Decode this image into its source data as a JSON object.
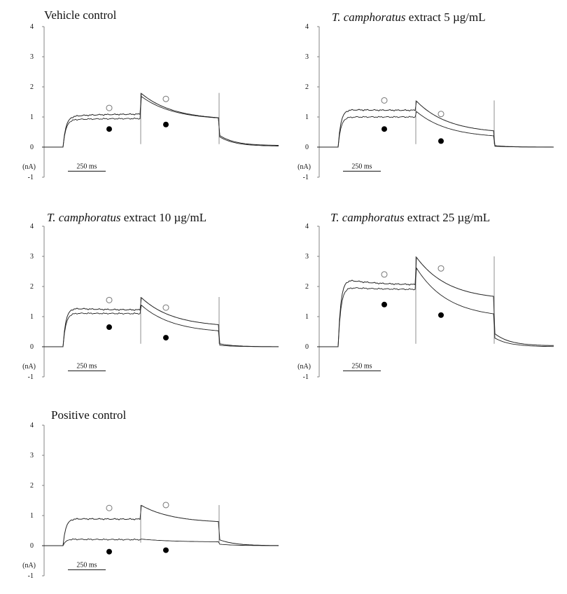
{
  "chart_data": [
    {
      "type": "line",
      "title": "Vehicle control",
      "y_unit": "(nA)",
      "ylim": [
        -1,
        4
      ],
      "yticks": [
        "4",
        "3",
        "2",
        "1",
        "0",
        "-1"
      ],
      "scale_bar": "250 ms",
      "series": [
        {
          "marker": "open-circle",
          "baseline": 0,
          "step1_peak": 1.0,
          "step1_plateau": 1.1,
          "step2_peak": 1.8,
          "step2_end": 0.9,
          "tail_start": 0.4,
          "tail_end": 0.05
        },
        {
          "marker": "filled-circle",
          "baseline": 0,
          "step1_peak": 0.9,
          "step1_plateau": 0.95,
          "step2_peak": 1.7,
          "step2_end": 0.9,
          "tail_start": 0.35,
          "tail_end": 0.03
        }
      ],
      "marker_values": {
        "open_1": 1.3,
        "filled_1": 0.6,
        "open_2": 1.6,
        "filled_2": 0.75
      }
    },
    {
      "type": "line",
      "title_italic": "T. camphoratus",
      "title_rest": " extract  5 µg/mL",
      "y_unit": "(nA)",
      "ylim": [
        -1,
        4
      ],
      "yticks": [
        "4",
        "3",
        "2",
        "1",
        "0",
        "-1"
      ],
      "scale_bar": "250 ms",
      "series": [
        {
          "marker": "open-circle",
          "baseline": 0,
          "step1_peak": 1.25,
          "step1_plateau": 1.22,
          "step2_peak": 1.55,
          "step2_end": 0.45,
          "tail_start": 0.05,
          "tail_end": 0.0
        },
        {
          "marker": "filled-circle",
          "baseline": 0,
          "step1_peak": 1.0,
          "step1_plateau": 1.0,
          "step2_peak": 1.2,
          "step2_end": 0.3,
          "tail_start": 0.03,
          "tail_end": 0.0
        }
      ],
      "marker_values": {
        "open_1": 1.55,
        "filled_1": 0.6,
        "open_2": 1.1,
        "filled_2": 0.2
      }
    },
    {
      "type": "line",
      "title_italic": "T. camphoratus",
      "title_rest": " extract 10 µg/mL",
      "y_unit": "(nA)",
      "ylim": [
        -1,
        4
      ],
      "yticks": [
        "4",
        "3",
        "2",
        "1",
        "0",
        "-1"
      ],
      "scale_bar": "250 ms",
      "series": [
        {
          "marker": "open-circle",
          "baseline": 0,
          "step1_peak": 1.3,
          "step1_plateau": 1.22,
          "step2_peak": 1.65,
          "step2_end": 0.65,
          "tail_start": 0.1,
          "tail_end": 0.0
        },
        {
          "marker": "filled-circle",
          "baseline": 0,
          "step1_peak": 1.12,
          "step1_plateau": 1.1,
          "step2_peak": 1.4,
          "step2_end": 0.45,
          "tail_start": 0.05,
          "tail_end": 0.0
        }
      ],
      "marker_values": {
        "open_1": 1.55,
        "filled_1": 0.65,
        "open_2": 1.3,
        "filled_2": 0.3
      }
    },
    {
      "type": "line",
      "title_italic": "T. camphoratus",
      "title_rest": " extract  25 µg/mL",
      "y_unit": "(nA)",
      "ylim": [
        -1,
        4
      ],
      "yticks": [
        "4",
        "3",
        "2",
        "1",
        "0",
        "-1"
      ],
      "scale_bar": "250 ms",
      "series": [
        {
          "marker": "open-circle",
          "baseline": 0,
          "step1_peak": 2.3,
          "step1_plateau": 2.05,
          "step2_peak": 3.0,
          "step2_end": 1.55,
          "tail_start": 0.45,
          "tail_end": 0.03
        },
        {
          "marker": "filled-circle",
          "baseline": 0,
          "step1_peak": 2.0,
          "step1_plateau": 1.9,
          "step2_peak": 2.65,
          "step2_end": 0.95,
          "tail_start": 0.3,
          "tail_end": 0.0
        }
      ],
      "marker_values": {
        "open_1": 2.4,
        "filled_1": 1.4,
        "open_2": 2.6,
        "filled_2": 1.05
      }
    },
    {
      "type": "line",
      "title": "Positive control",
      "y_unit": "(nA)",
      "ylim": [
        -1,
        4
      ],
      "yticks": [
        "4",
        "3",
        "2",
        "1",
        "0",
        "-1"
      ],
      "scale_bar": "250 ms",
      "series": [
        {
          "marker": "open-circle",
          "baseline": 0,
          "step1_peak": 0.9,
          "step1_plateau": 0.88,
          "step2_peak": 1.35,
          "step2_end": 0.75,
          "tail_start": 0.2,
          "tail_end": 0.0
        },
        {
          "marker": "filled-circle",
          "baseline": 0,
          "step1_peak": 0.22,
          "step1_plateau": 0.2,
          "step2_peak": 0.22,
          "step2_end": 0.12,
          "tail_start": 0.05,
          "tail_end": 0.0
        }
      ],
      "marker_values": {
        "open_1": 1.25,
        "filled_1": -0.2,
        "open_2": 1.35,
        "filled_2": -0.15
      }
    }
  ]
}
